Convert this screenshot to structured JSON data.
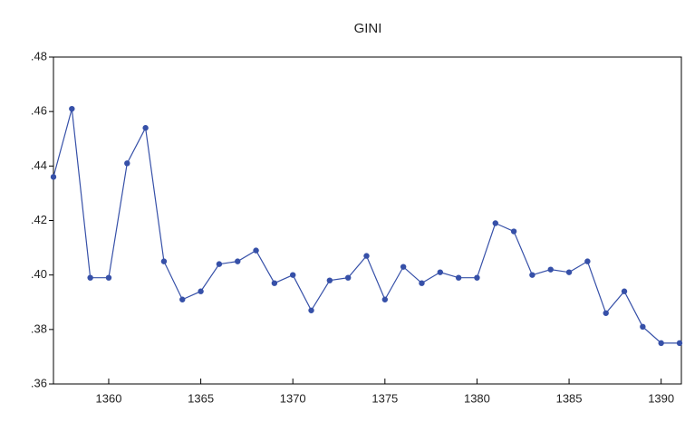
{
  "chart_data": {
    "type": "line",
    "title": "GINI",
    "x": [
      1357,
      1358,
      1359,
      1360,
      1361,
      1362,
      1363,
      1364,
      1365,
      1366,
      1367,
      1368,
      1369,
      1370,
      1371,
      1372,
      1373,
      1374,
      1375,
      1376,
      1377,
      1378,
      1379,
      1380,
      1381,
      1382,
      1383,
      1384,
      1385,
      1386,
      1387,
      1388,
      1389,
      1390,
      1391
    ],
    "series": [
      {
        "name": "GINI",
        "color": "#3650a8",
        "values": [
          0.436,
          0.461,
          0.399,
          0.399,
          0.441,
          0.454,
          0.405,
          0.391,
          0.394,
          0.404,
          0.405,
          0.409,
          0.397,
          0.4,
          0.387,
          0.398,
          0.399,
          0.407,
          0.391,
          0.403,
          0.397,
          0.401,
          0.399,
          0.399,
          0.419,
          0.416,
          0.4,
          0.402,
          0.401,
          0.405,
          0.386,
          0.394,
          0.381,
          0.375,
          0.375
        ]
      }
    ],
    "xlim": [
      1357,
      1391
    ],
    "xticks": [
      1360,
      1365,
      1370,
      1375,
      1380,
      1385,
      1390
    ],
    "ylim": [
      0.36,
      0.48
    ],
    "yticks": [
      {
        "value": 0.36,
        "label": ".36"
      },
      {
        "value": 0.38,
        "label": ".38"
      },
      {
        "value": 0.4,
        "label": ".40"
      },
      {
        "value": 0.42,
        "label": ".42"
      },
      {
        "value": 0.44,
        "label": ".44"
      },
      {
        "value": 0.46,
        "label": ".46"
      },
      {
        "value": 0.48,
        "label": ".48"
      }
    ],
    "grid": false
  }
}
